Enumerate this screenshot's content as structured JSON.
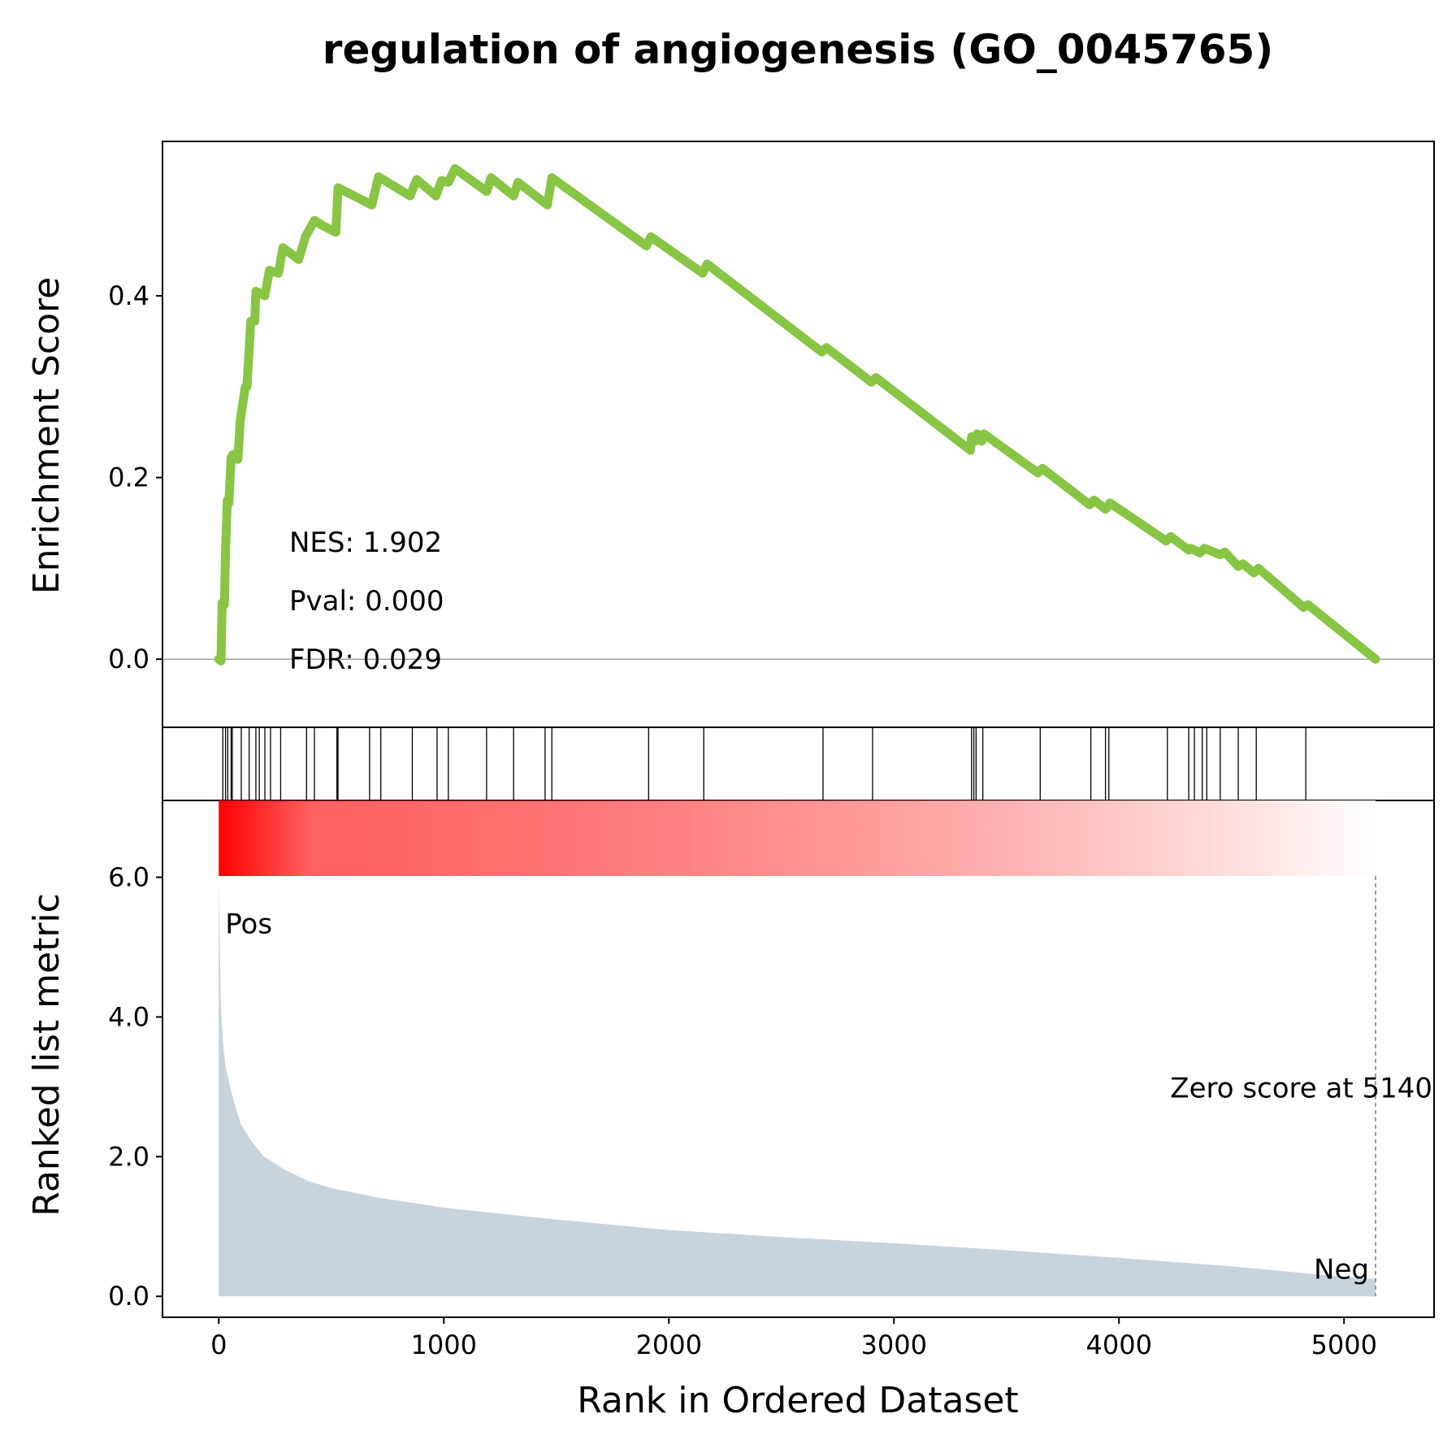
{
  "chart_data": {
    "type": "line",
    "title": "regulation of angiogenesis (GO_0045765)",
    "xlabel": "Rank in Ordered Dataset",
    "xlim": [
      -250,
      5400
    ],
    "xticks": [
      "0",
      "1000",
      "2000",
      "3000",
      "4000",
      "5000"
    ],
    "colors": {
      "es_line": "#88c544",
      "metric_fill": "#c9d3dc",
      "hit_line": "#000000",
      "pos_label": "#ff0000",
      "neg_label": "#0000ff",
      "heat_start": "#ff0000",
      "heat_end": "#ffffff"
    },
    "es_panel": {
      "ylabel": "Enrichment Score",
      "ylim": [
        -0.075,
        0.57
      ],
      "yticks": [
        "0.0",
        "0.2",
        "0.4"
      ],
      "stats": {
        "nes": "NES: 1.902",
        "pval": "Pval: 0.000",
        "fdr": "FDR: 0.029"
      },
      "series": [
        {
          "x": [
            0,
            10,
            15,
            25,
            30,
            38,
            45,
            55,
            62,
            85,
            95,
            118,
            125,
            135,
            142,
            160,
            165,
            205,
            225,
            265,
            285,
            355,
            385,
            425,
            465,
            520,
            530,
            680,
            710,
            850,
            880,
            965,
            990,
            1020,
            1050,
            1190,
            1210,
            1310,
            1330,
            1460,
            1480,
            1900,
            1920,
            2150,
            2170,
            2680,
            2700,
            2900,
            2920,
            3340,
            3345,
            3360,
            3370,
            3390,
            3400,
            3640,
            3660,
            3870,
            3890,
            3940,
            3960,
            4210,
            4230,
            4310,
            4320,
            4360,
            4380,
            4450,
            4470,
            4530,
            4550,
            4600,
            4620,
            4820,
            4840,
            5140
          ],
          "y": [
            0.0,
            -0.002,
            0.062,
            0.06,
            0.12,
            0.175,
            0.172,
            0.222,
            0.225,
            0.22,
            0.262,
            0.3,
            0.3,
            0.34,
            0.372,
            0.372,
            0.405,
            0.4,
            0.428,
            0.425,
            0.453,
            0.44,
            0.465,
            0.483,
            0.477,
            0.47,
            0.519,
            0.5,
            0.531,
            0.51,
            0.528,
            0.51,
            0.527,
            0.525,
            0.54,
            0.515,
            0.53,
            0.51,
            0.525,
            0.5,
            0.53,
            0.455,
            0.465,
            0.425,
            0.435,
            0.338,
            0.343,
            0.305,
            0.31,
            0.23,
            0.245,
            0.24,
            0.248,
            0.24,
            0.248,
            0.205,
            0.21,
            0.17,
            0.175,
            0.165,
            0.172,
            0.13,
            0.135,
            0.12,
            0.122,
            0.117,
            0.122,
            0.115,
            0.118,
            0.102,
            0.105,
            0.095,
            0.1,
            0.057,
            0.06,
            0.0
          ]
        }
      ]
    },
    "hits_panel": {
      "positions": [
        18,
        30,
        40,
        55,
        60,
        100,
        135,
        165,
        180,
        205,
        230,
        275,
        390,
        425,
        525,
        530,
        670,
        720,
        860,
        970,
        1020,
        1190,
        1310,
        1450,
        1480,
        1910,
        2155,
        2685,
        2905,
        3345,
        3355,
        3365,
        3395,
        3650,
        3875,
        3940,
        3955,
        4215,
        4310,
        4335,
        4370,
        4390,
        4450,
        4530,
        4610,
        4830
      ]
    },
    "metric_panel": {
      "ylabel": "Ranked list metric",
      "ylim": [
        -0.3,
        7.1
      ],
      "yticks": [
        "0.0",
        "2.0",
        "4.0",
        "6.0"
      ],
      "pos_label": "Pos",
      "neg_label": "Neg",
      "zero_label": "Zero score at 5140",
      "zero_rank": 5140,
      "heatmap_range": [
        0,
        5140
      ],
      "series": [
        {
          "x": [
            0,
            5,
            10,
            20,
            30,
            50,
            75,
            100,
            150,
            200,
            300,
            400,
            500,
            700,
            1000,
            1500,
            2000,
            2500,
            3000,
            3500,
            4000,
            4500,
            5000,
            5140
          ],
          "y": [
            5.95,
            5.0,
            4.1,
            3.6,
            3.3,
            3.0,
            2.7,
            2.45,
            2.2,
            2.0,
            1.8,
            1.65,
            1.55,
            1.42,
            1.27,
            1.1,
            0.95,
            0.85,
            0.76,
            0.66,
            0.55,
            0.43,
            0.28,
            0.25
          ]
        }
      ]
    }
  }
}
